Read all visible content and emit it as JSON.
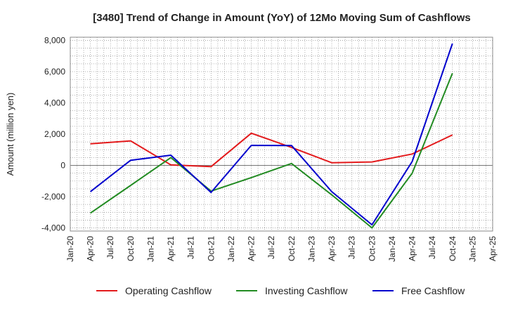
{
  "chart_data": {
    "type": "line",
    "title": "[3480]  Trend of Change in Amount (YoY) of 12Mo Moving Sum of Cashflows",
    "xlabel": "",
    "ylabel": "Amount (million yen)",
    "ylim": [
      -4200,
      8200
    ],
    "yticks": [
      -4000,
      -2000,
      0,
      2000,
      4000,
      6000,
      8000
    ],
    "ytick_labels": [
      "-4,000",
      "-2,000",
      "0",
      "2,000",
      "4,000",
      "6,000",
      "8,000"
    ],
    "x_tick_labels": [
      "Jan-20",
      "Apr-20",
      "Jul-20",
      "Oct-20",
      "Jan-21",
      "Apr-21",
      "Jul-21",
      "Oct-21",
      "Jan-22",
      "Apr-22",
      "Jul-22",
      "Oct-22",
      "Jan-23",
      "Apr-23",
      "Jul-23",
      "Oct-23",
      "Jan-24",
      "Apr-24",
      "Jul-24",
      "Oct-24",
      "Jan-25",
      "Apr-25"
    ],
    "series": [
      {
        "name": "Operating Cashflow",
        "color": "#e31a1c",
        "x": [
          "Apr-20",
          "Oct-20",
          "Apr-21",
          "Oct-21",
          "Apr-22",
          "Oct-22",
          "Apr-23",
          "Oct-23",
          "Apr-24",
          "Oct-24"
        ],
        "values": [
          1380,
          1570,
          30,
          -80,
          2060,
          1150,
          170,
          220,
          730,
          1950
        ]
      },
      {
        "name": "Investing Cashflow",
        "color": "#228b22",
        "x": [
          "Apr-20",
          "Oct-20",
          "Apr-21",
          "Oct-21",
          "Apr-22",
          "Oct-22",
          "Apr-23",
          "Oct-23",
          "Apr-24",
          "Oct-24"
        ],
        "values": [
          -3050,
          -1280,
          500,
          -1650,
          -780,
          120,
          -1880,
          -4000,
          -500,
          5900
        ]
      },
      {
        "name": "Free Cashflow",
        "color": "#0000cd",
        "x": [
          "Apr-20",
          "Oct-20",
          "Apr-21",
          "Oct-21",
          "Apr-22",
          "Oct-22",
          "Apr-23",
          "Oct-23",
          "Apr-24",
          "Oct-24"
        ],
        "values": [
          -1680,
          330,
          650,
          -1730,
          1280,
          1270,
          -1680,
          -3800,
          250,
          7800
        ]
      }
    ],
    "grid": true,
    "legend": "bottom"
  }
}
